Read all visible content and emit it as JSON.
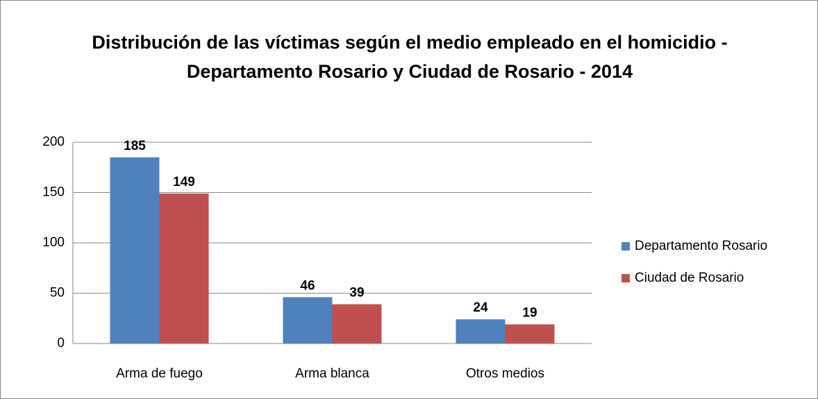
{
  "chart_data": {
    "type": "bar",
    "title": "Distribución de las víctimas según el medio empleado en el homicidio - Departamento Rosario y Ciudad de Rosario - 2014",
    "categories": [
      "Arma de fuego",
      "Arma blanca",
      "Otros medios"
    ],
    "series": [
      {
        "name": "Departamento Rosario",
        "color": "#4f81bd",
        "values": [
          185,
          46,
          24
        ]
      },
      {
        "name": "Ciudad de Rosario",
        "color": "#c0504d",
        "values": [
          149,
          39,
          19
        ]
      }
    ],
    "ylim": [
      0,
      200
    ],
    "yticks": [
      0,
      50,
      100,
      150,
      200
    ],
    "grid": true,
    "legend": "right"
  }
}
